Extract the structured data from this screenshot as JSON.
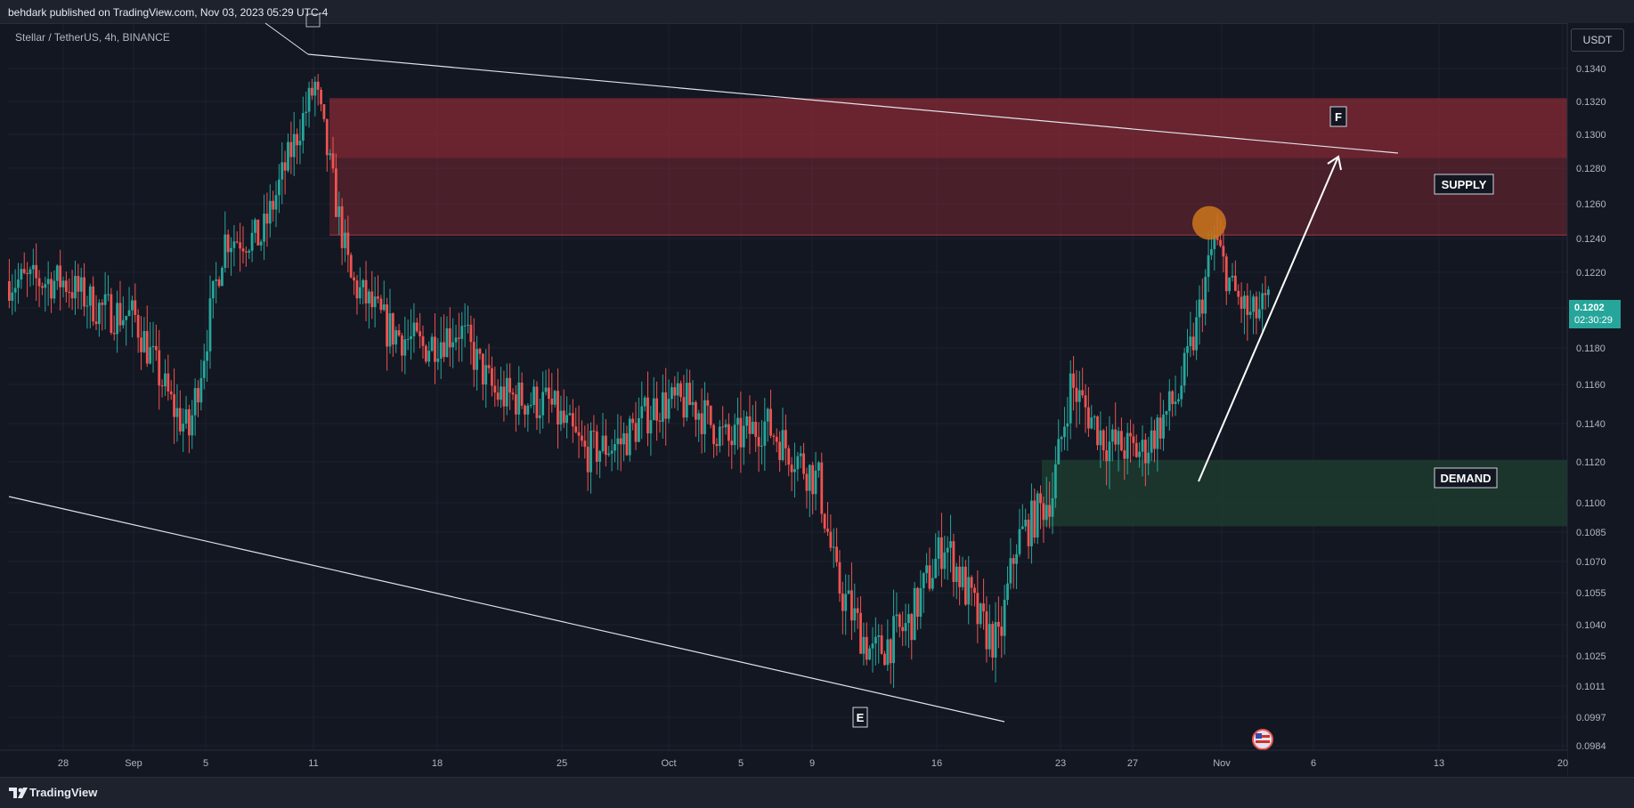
{
  "header": {
    "publish_text": "behdark published on TradingView.com, Nov 03, 2023 05:29 UTC-4",
    "symbol_line": "Stellar / TetherUS, 4h, BINANCE"
  },
  "price_scale": {
    "currency_button": "USDT",
    "last_price": "0.1202",
    "countdown": "02:30:29"
  },
  "footer": {
    "brand": "TradingView"
  },
  "annotations": {
    "supply_label": "SUPPLY",
    "demand_label": "DEMAND",
    "wave_f_label": "F",
    "wave_e_label": "E",
    "supply_zone": {
      "price_low": 0.1242,
      "price_high": 0.1322,
      "price_mid": 0.1286,
      "color": "#8b2a35"
    },
    "demand_zone": {
      "price_low": 0.1088,
      "price_high": 0.1121,
      "color": "#1d3b2f"
    },
    "highlight_circle_price": 0.1249,
    "circle_color": "#c8741c"
  },
  "colors": {
    "background": "#131722",
    "up_candle": "#26a69a",
    "down_candle": "#ef5350",
    "grid": "#1e2230",
    "line": "#e0e3eb"
  },
  "chart_data": {
    "type": "candlestick",
    "symbol": "Stellar / TetherUS",
    "timeframe": "4h",
    "exchange": "BINANCE",
    "x_ticks": [
      "28",
      "Sep",
      "5",
      "11",
      "18",
      "25",
      "Oct",
      "5",
      "9",
      "16",
      "23",
      "27",
      "Nov",
      "6",
      "13",
      "20"
    ],
    "y_ticks": [
      "0.1340",
      "0.1320",
      "0.1300",
      "0.1280",
      "0.1260",
      "0.1240",
      "0.1220",
      "0.1200",
      "0.1180",
      "0.1160",
      "0.1140",
      "0.1120",
      "0.1100",
      "0.1085",
      "0.1070",
      "0.1055",
      "0.1040",
      "0.1025",
      "0.1011",
      "0.0997",
      "0.0984"
    ],
    "close_path": [
      [
        "28 Aug",
        0.1215
      ],
      [
        "30 Aug",
        0.12
      ],
      [
        "1 Sep",
        0.1195
      ],
      [
        "3 Sep",
        0.115
      ],
      [
        "4 Sep",
        0.1135
      ],
      [
        "6 Sep",
        0.124
      ],
      [
        "8 Sep",
        0.124
      ],
      [
        "10 Sep",
        0.13
      ],
      [
        "11 Sep",
        0.133
      ],
      [
        "12 Sep",
        0.127
      ],
      [
        "13 Sep",
        0.1215
      ],
      [
        "15 Sep",
        0.119
      ],
      [
        "17 Sep",
        0.118
      ],
      [
        "19 Sep",
        0.119
      ],
      [
        "21 Sep",
        0.1155
      ],
      [
        "24 Sep",
        0.115
      ],
      [
        "26 Sep",
        0.1125
      ],
      [
        "28 Sep",
        0.113
      ],
      [
        "30 Sep",
        0.115
      ],
      [
        "2 Oct",
        0.115
      ],
      [
        "4 Oct",
        0.113
      ],
      [
        "6 Oct",
        0.114
      ],
      [
        "8 Oct",
        0.112
      ],
      [
        "9 Oct",
        0.111
      ],
      [
        "10 Oct",
        0.106
      ],
      [
        "12 Oct",
        0.1025
      ],
      [
        "14 Oct",
        0.104
      ],
      [
        "16 Oct",
        0.108
      ],
      [
        "18 Oct",
        0.104
      ],
      [
        "19 Oct",
        0.103
      ],
      [
        "20 Oct",
        0.108
      ],
      [
        "22 Oct",
        0.1105
      ],
      [
        "23 Oct",
        0.116
      ],
      [
        "25 Oct",
        0.113
      ],
      [
        "27 Oct",
        0.1125
      ],
      [
        "29 Oct",
        0.1155
      ],
      [
        "30 Oct",
        0.119
      ],
      [
        "31 Oct",
        0.124
      ],
      [
        "1 Nov",
        0.121
      ],
      [
        "2 Nov",
        0.1195
      ],
      [
        "3 Nov",
        0.1202
      ]
    ],
    "high": 0.1342,
    "low": 0.101,
    "last": 0.1202,
    "grid": true
  }
}
